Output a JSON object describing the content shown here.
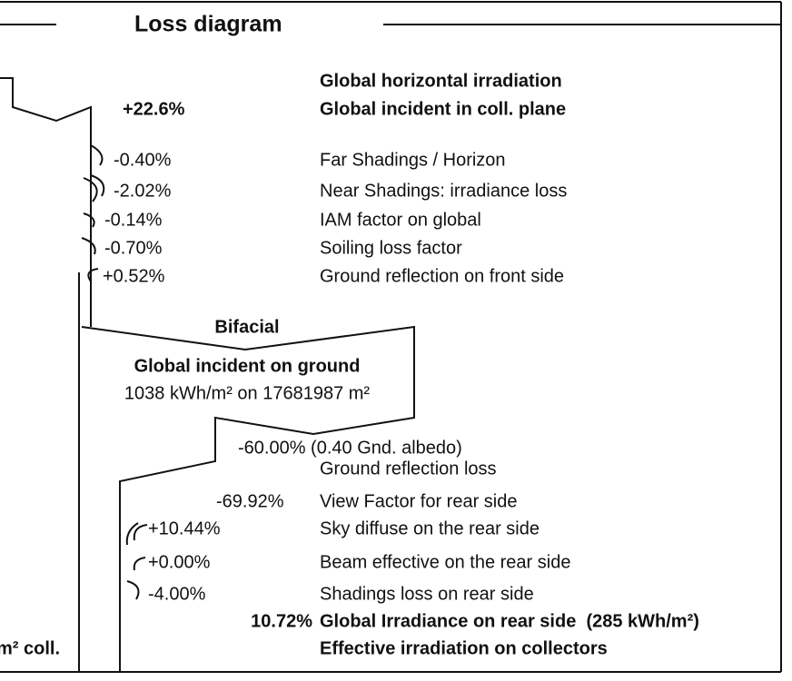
{
  "header": {
    "title": "Loss diagram"
  },
  "front": {
    "start_label": "Global horizontal irradiation",
    "gain": "+22.6%",
    "incident_label": "Global incident in coll. plane"
  },
  "front_losses": [
    {
      "value": "-0.40%",
      "label": "Far Shadings / Horizon"
    },
    {
      "value": "-2.02%",
      "label": "Near Shadings: irradiance loss"
    },
    {
      "value": "-0.14%",
      "label": "IAM factor on global"
    },
    {
      "value": "-0.70%",
      "label": "Soiling loss factor"
    },
    {
      "value": "+0.52%",
      "label": "Ground reflection on front side"
    }
  ],
  "bifacial": {
    "title": "Bifacial",
    "ground_label": "Global incident on ground",
    "ground_detail": "1038 kWh/m² on 17681987 m²",
    "albedo_value": "-60.00% (0.40 Gnd. albedo)",
    "albedo_label": "Ground reflection loss",
    "view_value": "-69.92%",
    "view_label": "View Factor for rear side"
  },
  "rear_losses": [
    {
      "value": "+10.44%",
      "label": "Sky diffuse on the rear side"
    },
    {
      "value": "+0.00%",
      "label": "Beam effective on the rear side"
    },
    {
      "value": "-4.00%",
      "label": "Shadings loss on rear side"
    }
  ],
  "rear_total": {
    "value": "10.72%",
    "label": "Global Irradiance on rear side  (285 kWh/m²)"
  },
  "footer": {
    "left_fragment": "m² coll.",
    "label": "Effective irradiation on collectors"
  }
}
